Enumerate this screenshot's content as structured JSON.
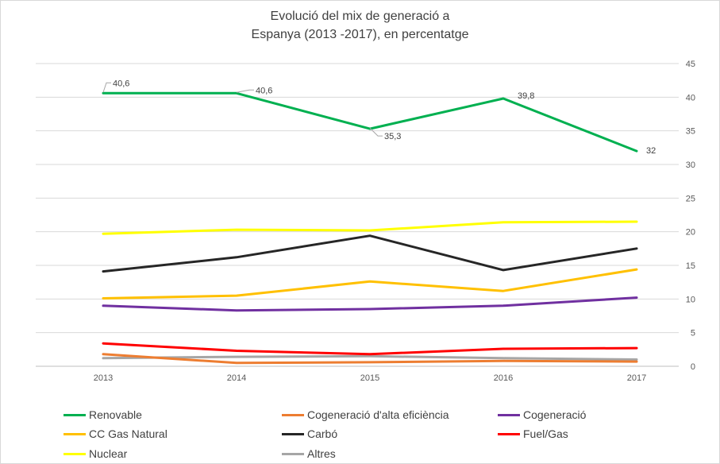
{
  "chart_data": {
    "type": "line",
    "title_line1": "Evolució del mix de generació a",
    "title_line2": "Espanya (2013 -2017), en percentatge",
    "x": [
      "2013",
      "2014",
      "2015",
      "2016",
      "2017"
    ],
    "ylim": [
      0,
      45
    ],
    "yticks": [
      0,
      5,
      10,
      15,
      20,
      25,
      30,
      35,
      40,
      45
    ],
    "y_axis_side": "right",
    "grid": true,
    "legend_position": "bottom",
    "series": [
      {
        "name": "Renovable",
        "color": "#00b050",
        "values": [
          40.6,
          40.6,
          35.3,
          39.8,
          32
        ],
        "labels": [
          "40,6",
          "40,6",
          "35,3",
          "39,8",
          "32"
        ]
      },
      {
        "name": "Cogeneració d'alta eficiència",
        "color": "#ed7d31",
        "values": [
          1.8,
          0.5,
          0.6,
          0.8,
          0.7
        ]
      },
      {
        "name": "Cogeneració",
        "color": "#7030a0",
        "values": [
          9.0,
          8.3,
          8.5,
          9.0,
          10.2
        ]
      },
      {
        "name": "CC Gas Natural",
        "color": "#ffc000",
        "values": [
          10.1,
          10.5,
          12.6,
          11.2,
          14.4
        ]
      },
      {
        "name": "Carbó",
        "color": "#262626",
        "values": [
          14.1,
          16.2,
          19.4,
          14.3,
          17.5
        ]
      },
      {
        "name": "Fuel/Gas",
        "color": "#ff0000",
        "values": [
          3.4,
          2.3,
          1.8,
          2.6,
          2.7
        ]
      },
      {
        "name": "Nuclear",
        "color": "#ffff00",
        "values": [
          19.7,
          20.3,
          20.2,
          21.4,
          21.5
        ]
      },
      {
        "name": "Altres",
        "color": "#a6a6a6",
        "values": [
          1.2,
          1.4,
          1.5,
          1.2,
          1.0
        ]
      }
    ]
  }
}
